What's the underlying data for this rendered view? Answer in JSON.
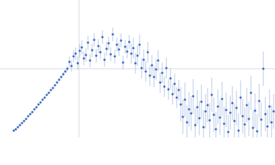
{
  "chart_data": {
    "type": "scatter",
    "x": [
      20,
      23,
      26,
      29,
      32,
      35,
      38,
      41,
      44,
      47,
      50,
      53,
      56,
      59,
      62,
      65,
      68,
      71,
      74,
      77,
      80,
      83,
      86,
      89,
      92,
      95,
      98,
      101,
      104,
      107,
      110,
      113,
      116,
      119,
      122,
      125,
      128,
      131,
      134,
      137,
      140,
      143,
      146,
      149,
      152,
      155,
      158,
      161,
      164,
      167,
      170,
      173,
      176,
      179,
      182,
      185,
      188,
      191,
      194,
      197,
      200,
      203,
      206,
      209,
      212,
      215,
      218,
      221,
      224,
      227,
      230,
      233,
      236,
      239,
      242,
      245,
      248,
      251,
      254,
      257,
      260,
      263,
      266,
      269,
      272,
      275,
      278,
      281,
      284,
      287,
      290,
      293,
      296,
      299,
      302,
      305,
      308,
      311,
      314,
      317,
      320,
      323,
      326,
      329,
      332,
      335,
      338,
      341,
      344,
      347,
      350,
      353,
      356,
      359,
      362,
      365,
      368,
      371,
      374,
      377,
      380,
      383,
      386,
      389,
      392,
      395,
      398
    ],
    "values": [
      10,
      12,
      15,
      18,
      21,
      24,
      27,
      31,
      34,
      37,
      41,
      44,
      48,
      51,
      55,
      58,
      62,
      65,
      69,
      72,
      76,
      80,
      84,
      88,
      92,
      96,
      100,
      110,
      104,
      118,
      122,
      108,
      126,
      131,
      115,
      120,
      138,
      112,
      127,
      142,
      119,
      133,
      124,
      146,
      113,
      129,
      137,
      121,
      150,
      118,
      135,
      128,
      141,
      109,
      132,
      125,
      139,
      122,
      130,
      108,
      119,
      135,
      101,
      113,
      96,
      124,
      90,
      105,
      88,
      99,
      112,
      80,
      94,
      74,
      101,
      70,
      86,
      63,
      78,
      58,
      69,
      48,
      30,
      55,
      22,
      41,
      35,
      60,
      18,
      44,
      28,
      52,
      15,
      38,
      47,
      25,
      62,
      33,
      12,
      45,
      29,
      56,
      20,
      40,
      8,
      36,
      50,
      24,
      43,
      10,
      58,
      31,
      19,
      47,
      27,
      65,
      14,
      39,
      9,
      53,
      26,
      100,
      34,
      16,
      45,
      22,
      38
    ],
    "errors": [
      1,
      1,
      1,
      1,
      1,
      1,
      1,
      1,
      1,
      1,
      1,
      1,
      1,
      1,
      1,
      1,
      1,
      1,
      1,
      1,
      1,
      2,
      2,
      2,
      3,
      3,
      4,
      8,
      8,
      9,
      9,
      10,
      10,
      10,
      10,
      10,
      10,
      10,
      10,
      10,
      10,
      10,
      10,
      10,
      10,
      10,
      10,
      10,
      10,
      10,
      10,
      10,
      10,
      10,
      10,
      10,
      10,
      15,
      15,
      15,
      15,
      15,
      15,
      15,
      15,
      15,
      15,
      15,
      15,
      15,
      15,
      15,
      15,
      15,
      15,
      15,
      15,
      15,
      15,
      15,
      15,
      25,
      25,
      25,
      25,
      25,
      25,
      25,
      25,
      25,
      25,
      25,
      25,
      25,
      25,
      25,
      25,
      25,
      25,
      25,
      25,
      25,
      25,
      25,
      25,
      25,
      25,
      25,
      25,
      25,
      25,
      25,
      25,
      25,
      25,
      25,
      25,
      25,
      25,
      25,
      25,
      25,
      25,
      25,
      25,
      25,
      25
    ],
    "color": "#3c6cc0",
    "error_color": "#b4c6e4",
    "xlim": [
      0,
      400
    ],
    "ylim": [
      0,
      200
    ]
  }
}
